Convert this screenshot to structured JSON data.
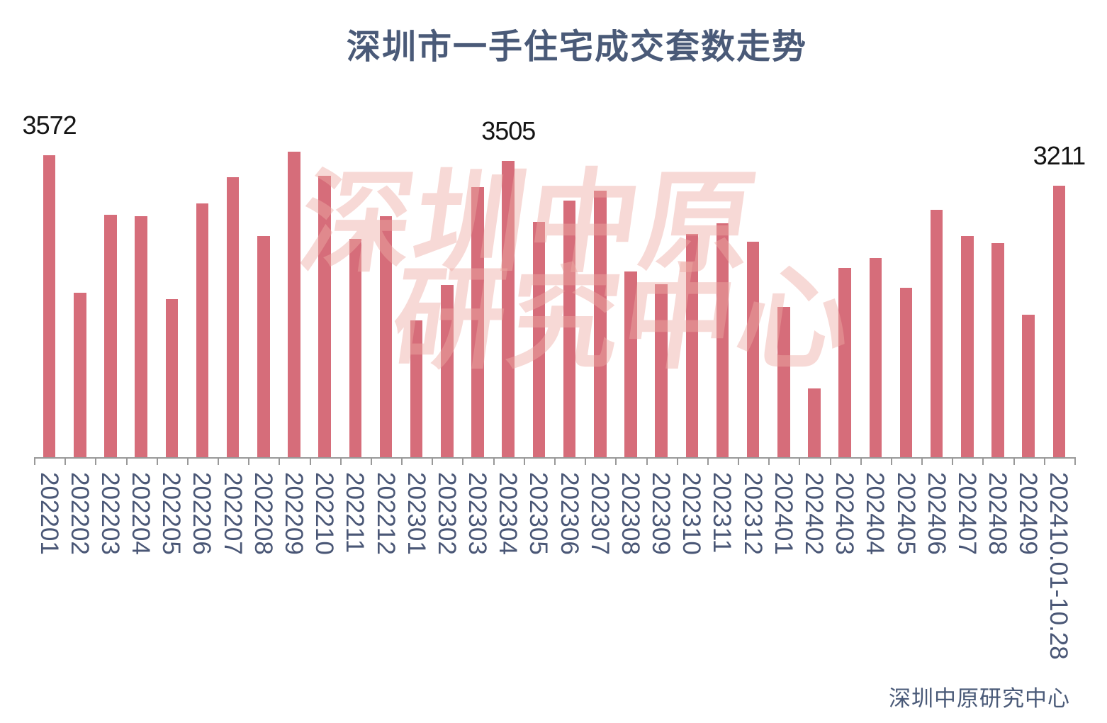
{
  "title": "深圳市一手住宅成交套数走势",
  "footer": "深圳中原研究中心",
  "watermark": {
    "line1": "深圳中原",
    "line2": "研究中心"
  },
  "colors": {
    "bar": "#d66d7a",
    "title_text": "#4a5a78",
    "axis_label_text": "#4a5776",
    "axis_line": "#999999",
    "data_label_text": "#141414",
    "watermark_text": "rgba(238,170,165,0.45)",
    "background": "#ffffff"
  },
  "chart_data": {
    "type": "bar",
    "title": "深圳市一手住宅成交套数走势",
    "xlabel": "",
    "ylabel": "",
    "grid": false,
    "legend": false,
    "y_axis_visible": false,
    "ylim": [
      0,
      3900
    ],
    "categories": [
      "202201",
      "202202",
      "202203",
      "202204",
      "202205",
      "202206",
      "202207",
      "202208",
      "202209",
      "202210",
      "202211",
      "202212",
      "202301",
      "202302",
      "202303",
      "202304",
      "202305",
      "202306",
      "202307",
      "202308",
      "202309",
      "202310",
      "202311",
      "202312",
      "202401",
      "202402",
      "202403",
      "202404",
      "202405",
      "202406",
      "202407",
      "202408",
      "202409",
      "202410.01-10.28"
    ],
    "values": [
      3572,
      1946,
      2868,
      2851,
      1870,
      3002,
      3312,
      2616,
      3614,
      3329,
      2583,
      2851,
      1618,
      2038,
      3195,
      3505,
      2784,
      3036,
      3153,
      2197,
      2046,
      2641,
      2769,
      2549,
      1778,
      813,
      2239,
      2356,
      2004,
      2927,
      2616,
      2532,
      1686,
      3211
    ],
    "data_labels": [
      {
        "index": 0,
        "text": "3572"
      },
      {
        "index": 15,
        "text": "3505"
      },
      {
        "index": 33,
        "text": "3211"
      }
    ],
    "series_name": "成交套数",
    "annotation": "深圳中原研究中心"
  }
}
